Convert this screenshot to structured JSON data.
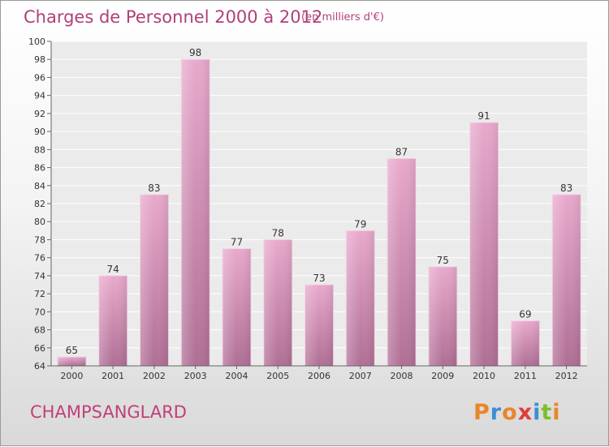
{
  "chart_data": {
    "type": "bar",
    "title": "Charges de Personnel 2000 à 2012",
    "subtitle": "(en milliers d'€)",
    "categories": [
      "2000",
      "2001",
      "2002",
      "2003",
      "2004",
      "2005",
      "2006",
      "2007",
      "2008",
      "2009",
      "2010",
      "2011",
      "2012"
    ],
    "values": [
      65,
      74,
      83,
      98,
      77,
      78,
      73,
      79,
      87,
      75,
      91,
      69,
      83
    ],
    "ylim": [
      64,
      100
    ],
    "yticks": [
      64,
      66,
      68,
      70,
      72,
      74,
      76,
      78,
      80,
      82,
      84,
      86,
      88,
      90,
      92,
      94,
      96,
      98,
      100
    ],
    "grid": true,
    "bar_color": "#c77fa8"
  },
  "footer": {
    "commune": "CHAMPSANGLARD",
    "logo": {
      "text": "Proxiti",
      "letters": [
        {
          "ch": "P",
          "color": "#e8862a"
        },
        {
          "ch": "r",
          "color": "#3a8fd6"
        },
        {
          "ch": "o",
          "color": "#e8862a"
        },
        {
          "ch": "x",
          "color": "#e23b3b"
        },
        {
          "ch": "i",
          "color": "#3a8fd6"
        },
        {
          "ch": "t",
          "color": "#7bbf2a"
        },
        {
          "ch": "i",
          "color": "#e8862a"
        }
      ]
    }
  }
}
